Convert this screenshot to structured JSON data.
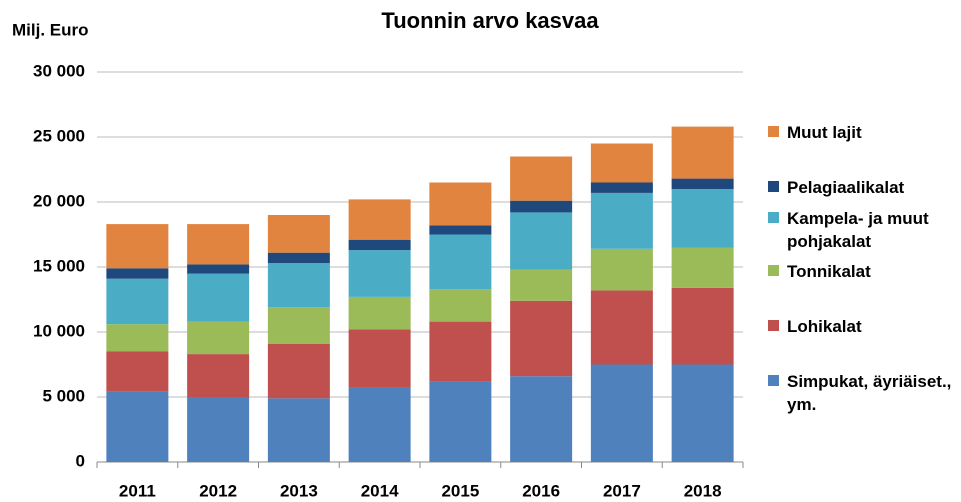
{
  "chart_data": {
    "type": "bar",
    "stacked": true,
    "title": "Tuonnin arvo kasvaa",
    "y_label": "Milj. Euro",
    "categories": [
      "2011",
      "2012",
      "2013",
      "2014",
      "2015",
      "2016",
      "2017",
      "2018"
    ],
    "series": [
      {
        "name": "Simpukat, äyriäiset., ym.",
        "color": "#4f81bd",
        "values": [
          5400,
          5000,
          4900,
          5700,
          6200,
          6600,
          7500,
          7500
        ]
      },
      {
        "name": "Lohikalat",
        "color": "#c0504d",
        "values": [
          3100,
          3300,
          4200,
          4500,
          4600,
          5800,
          5700,
          5900
        ]
      },
      {
        "name": "Tonnikalat",
        "color": "#9bbb59",
        "values": [
          2100,
          2500,
          2800,
          2500,
          2500,
          2400,
          3200,
          3100
        ]
      },
      {
        "name": "Kampela- ja muut pohjakalat",
        "color": "#4bacc6",
        "values": [
          3500,
          3700,
          3400,
          3600,
          4200,
          4400,
          4300,
          4500
        ]
      },
      {
        "name": "Pelagiaalikalat",
        "color": "#1f497d",
        "values": [
          800,
          700,
          800,
          800,
          700,
          900,
          800,
          800
        ]
      },
      {
        "name": "Muut lajit",
        "color": "#e0843f",
        "values": [
          3400,
          3100,
          2900,
          3100,
          3300,
          3400,
          3000,
          4000
        ]
      }
    ],
    "ylim": [
      0,
      30000
    ],
    "yticks": [
      0,
      {
        "value": 5000,
        "label": "5 000"
      },
      {
        "value": 10000,
        "label": "10 000"
      },
      {
        "value": 15000,
        "label": "15 000"
      },
      {
        "value": 20000,
        "label": "20 000"
      },
      {
        "value": 25000,
        "label": "25 000"
      },
      {
        "value": 30000,
        "label": "30 000"
      }
    ],
    "grid": true
  }
}
